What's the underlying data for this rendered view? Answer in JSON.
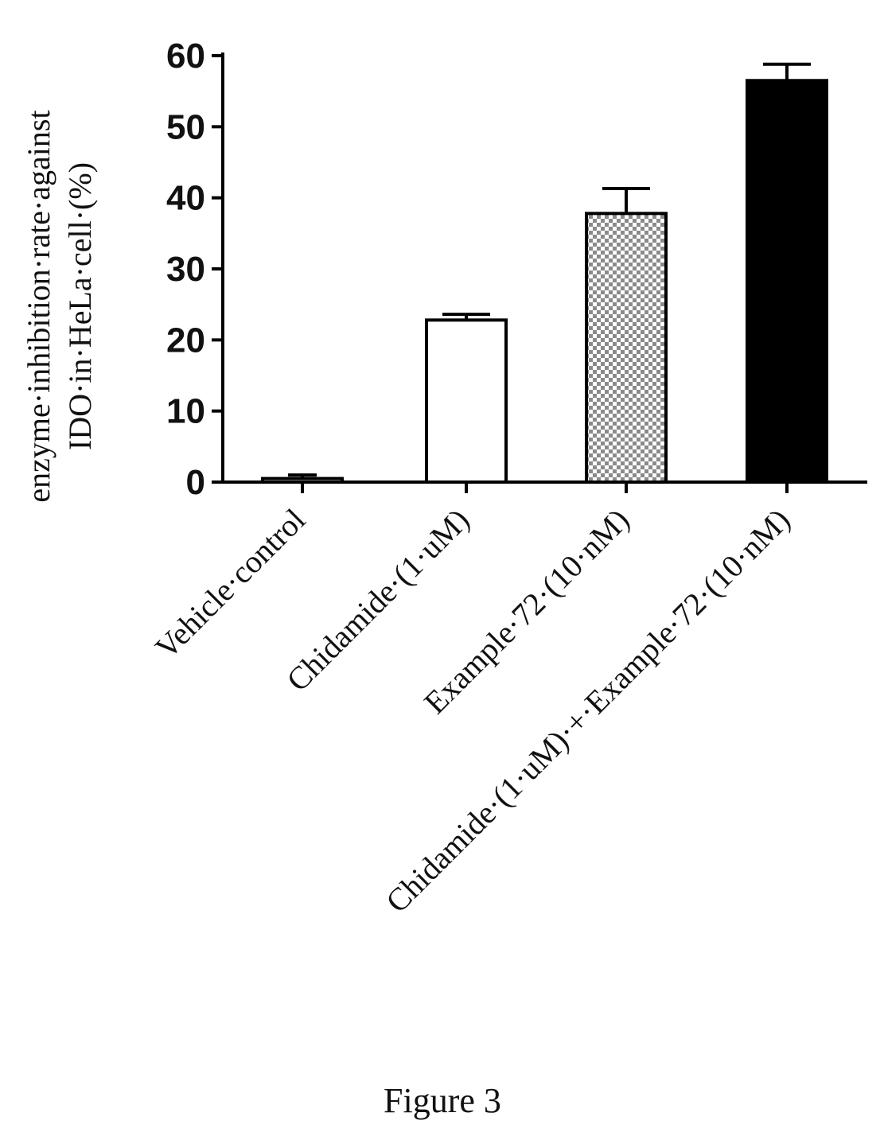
{
  "chart_data": {
    "type": "bar",
    "ylabel_lines": [
      "enzyme·inhibition·rate·against",
      "IDO·in·HeLa·cell·(%)"
    ],
    "categories": [
      "Vehicle·control",
      "Chidamide·(1·uM)",
      "Example·72·(10·nM)",
      "Chidamide·(1·uM)·+·Example·72·(10·nM)"
    ],
    "values": [
      0.5,
      22.8,
      37.8,
      56.5
    ],
    "errors": [
      0.5,
      0.8,
      3.5,
      2.3
    ],
    "bar_styles": [
      "white",
      "white",
      "checkered",
      "black"
    ],
    "yticks": [
      0,
      10,
      20,
      30,
      40,
      50,
      60
    ],
    "ylim": [
      0,
      60
    ],
    "grid": false,
    "legend": "none"
  },
  "caption": "Figure 3"
}
